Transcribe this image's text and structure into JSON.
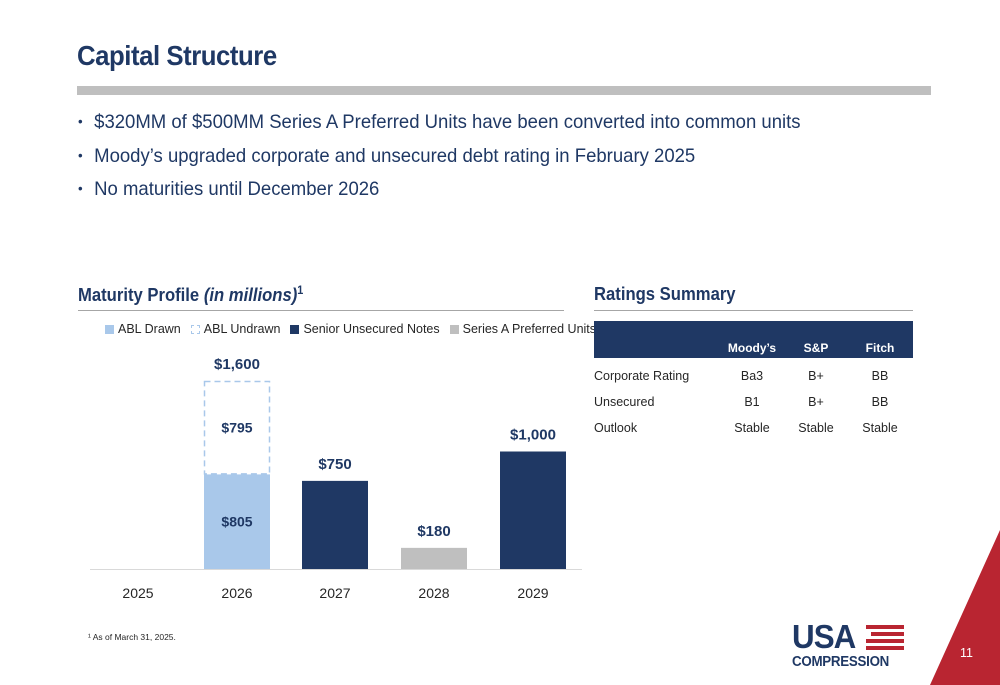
{
  "title": "Capital Structure",
  "bullets": [
    "$320MM of $500MM Series A Preferred Units have been converted into common units",
    "Moody’s upgraded corporate and unsecured debt rating in February 2025",
    "No maturities until December 2026"
  ],
  "maturity": {
    "title": "Maturity Profile",
    "title_italic": "(in millions)",
    "title_sup": "1"
  },
  "chart_data": {
    "type": "bar",
    "stacked": true,
    "categories": [
      "2025",
      "2026",
      "2027",
      "2028",
      "2029"
    ],
    "series": [
      {
        "name": "ABL Drawn",
        "color": "#a9c8ea",
        "values": [
          0,
          805,
          0,
          0,
          0
        ]
      },
      {
        "name": "ABL Undrawn",
        "color": "#a9c8ea",
        "style": "dashed-outline",
        "values": [
          0,
          795,
          0,
          0,
          0
        ]
      },
      {
        "name": "Senior Unsecured Notes",
        "color": "#1f3864",
        "values": [
          0,
          0,
          750,
          0,
          1000
        ]
      },
      {
        "name": "Series A Preferred Units",
        "color": "#bfbfbf",
        "values": [
          0,
          0,
          0,
          180,
          0
        ]
      }
    ],
    "segment_labels": [
      {
        "category": "2026",
        "series": "ABL Drawn",
        "text": "$805"
      },
      {
        "category": "2026",
        "series": "ABL Undrawn",
        "text": "$795"
      }
    ],
    "total_labels": [
      {
        "category": "2026",
        "text": "$1,600"
      },
      {
        "category": "2027",
        "text": "$750"
      },
      {
        "category": "2028",
        "text": "$180"
      },
      {
        "category": "2029",
        "text": "$1,000"
      }
    ],
    "ylim": [
      0,
      1600
    ],
    "legend_position": "top",
    "grid": false
  },
  "ratings": {
    "title": "Ratings Summary",
    "columns": [
      "Moody’s",
      "S&P",
      "Fitch"
    ],
    "rows": [
      {
        "label": "Corporate Rating",
        "values": [
          "Ba3",
          "B+",
          "BB"
        ]
      },
      {
        "label": "Unsecured",
        "values": [
          "B1",
          "B+",
          "BB"
        ]
      },
      {
        "label": "Outlook",
        "values": [
          "Stable",
          "Stable",
          "Stable"
        ]
      }
    ]
  },
  "footnote": "¹ As of March 31, 2025.",
  "logo": {
    "line1": "USA",
    "line2": "COMPRESSION"
  },
  "page_number": "11",
  "colors": {
    "navy": "#1f3864",
    "light_blue": "#a9c8ea",
    "gray": "#bfbfbf",
    "red": "#b92531"
  }
}
